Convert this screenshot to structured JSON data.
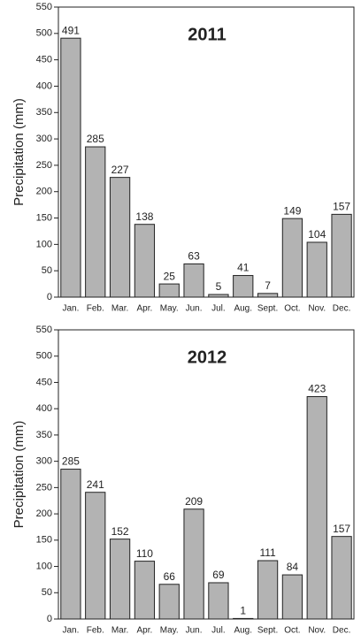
{
  "chart_data": [
    {
      "type": "bar",
      "title": "2011",
      "y_label": "Precipitation (mm)",
      "categories": [
        "Jan.",
        "Feb.",
        "Mar.",
        "Apr.",
        "May.",
        "Jun.",
        "Jul.",
        "Aug.",
        "Sept.",
        "Oct.",
        "Nov.",
        "Dec."
      ],
      "values": [
        491,
        285,
        227,
        138,
        25,
        63,
        5,
        41,
        7,
        149,
        104,
        157
      ],
      "color": "#b3b3b3",
      "ylim": [
        0,
        550
      ],
      "yticks": [
        0,
        50,
        100,
        150,
        200,
        250,
        300,
        350,
        400,
        450,
        500,
        550
      ]
    },
    {
      "type": "bar",
      "title": "2012",
      "y_label": "Precipitation (mm)",
      "categories": [
        "Jan.",
        "Feb.",
        "Mar.",
        "Apr.",
        "May.",
        "Jun.",
        "Jul.",
        "Aug.",
        "Sept.",
        "Oct.",
        "Nov.",
        "Dec."
      ],
      "values": [
        285,
        241,
        152,
        110,
        66,
        209,
        69,
        1,
        111,
        84,
        423,
        157
      ],
      "color": "#b3b3b3",
      "ylim": [
        0,
        550
      ],
      "yticks": [
        0,
        50,
        100,
        150,
        200,
        250,
        300,
        350,
        400,
        450,
        500,
        550
      ]
    }
  ]
}
